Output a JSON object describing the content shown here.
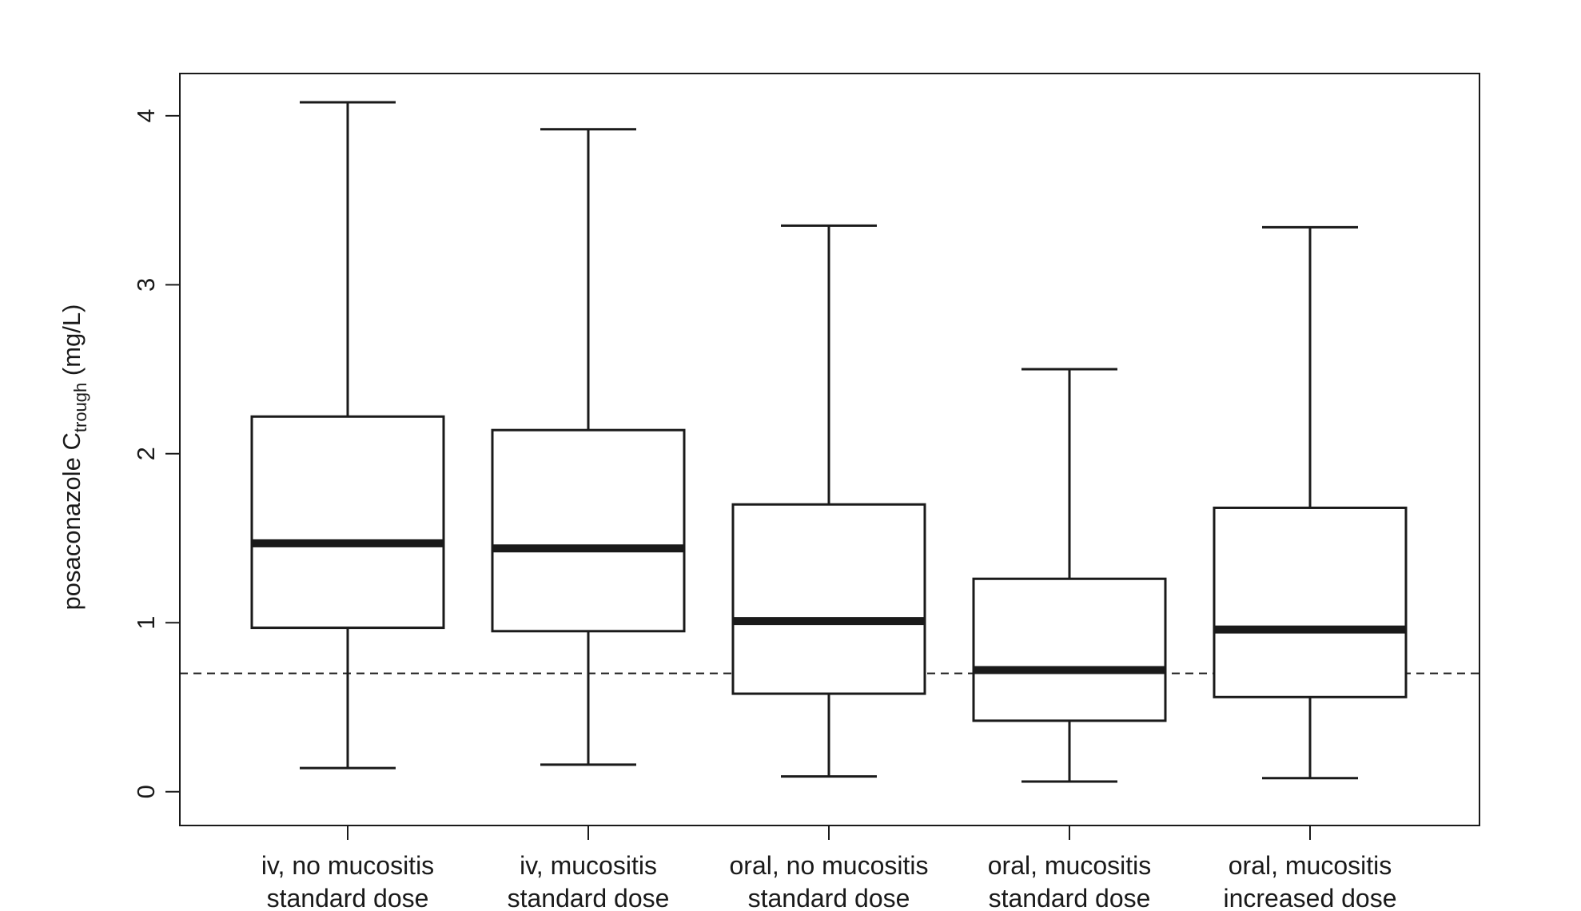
{
  "chart_data": {
    "type": "boxplot",
    "title": "",
    "ylabel": {
      "prefix": "posaconazole C",
      "subscript": "trough",
      "suffix": " (mg/L)"
    },
    "ylim": [
      -0.2,
      4.25
    ],
    "yticks": [
      "0",
      "1",
      "2",
      "3",
      "4"
    ],
    "grid": false,
    "reference_line": {
      "value": 0.7,
      "style": "dashed"
    },
    "categories": [
      {
        "line1": "iv, no mucositis",
        "line2": "standard dose"
      },
      {
        "line1": "iv, mucositis",
        "line2": "standard dose"
      },
      {
        "line1": "oral, no mucositis",
        "line2": "standard dose"
      },
      {
        "line1": "oral, mucositis",
        "line2": "standard dose"
      },
      {
        "line1": "oral, mucositis",
        "line2": "increased dose"
      }
    ],
    "boxes": [
      {
        "min": 0.14,
        "q1": 0.97,
        "median": 1.47,
        "q3": 2.22,
        "max": 4.08
      },
      {
        "min": 0.16,
        "q1": 0.95,
        "median": 1.44,
        "q3": 2.14,
        "max": 3.92
      },
      {
        "min": 0.09,
        "q1": 0.58,
        "median": 1.01,
        "q3": 1.7,
        "max": 3.35
      },
      {
        "min": 0.06,
        "q1": 0.42,
        "median": 0.72,
        "q3": 1.26,
        "max": 2.5
      },
      {
        "min": 0.08,
        "q1": 0.56,
        "median": 0.96,
        "q3": 1.68,
        "max": 3.34
      }
    ],
    "colors": {
      "stroke": "#1a1a1a",
      "box_fill": "#ffffff"
    }
  }
}
